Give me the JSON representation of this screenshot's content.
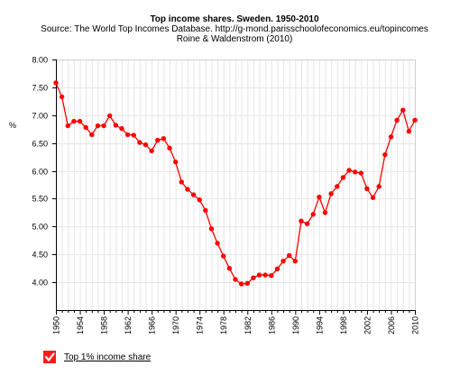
{
  "chart_data": {
    "type": "line",
    "title": "Top income shares. Sweden. 1950-2010",
    "subtitle": [
      "Source: The World Top Incomes Database. http://g-mond.parisschoolofeconomics.eu/topincomes",
      "Roine & Waldenstrom (2010)"
    ],
    "ylabel": "%",
    "xlabel": "",
    "xlim": [
      1950,
      2010
    ],
    "ylim": [
      3.5,
      8.0
    ],
    "x_ticks": [
      1950,
      1954,
      1958,
      1962,
      1966,
      1970,
      1974,
      1978,
      1982,
      1986,
      1990,
      1994,
      1998,
      2002,
      2006,
      2010
    ],
    "y_ticks": [
      "4.00",
      "4.50",
      "5.00",
      "5.50",
      "6.00",
      "6.50",
      "7.00",
      "7.50",
      "8.00"
    ],
    "grid": true,
    "legend_position": "bottom-left",
    "series": [
      {
        "name": "Top 1% income share",
        "color": "#ff0000",
        "x": [
          1950,
          1951,
          1952,
          1953,
          1954,
          1955,
          1956,
          1957,
          1958,
          1959,
          1960,
          1961,
          1962,
          1963,
          1964,
          1965,
          1966,
          1967,
          1968,
          1969,
          1970,
          1971,
          1972,
          1973,
          1974,
          1975,
          1976,
          1977,
          1978,
          1979,
          1980,
          1981,
          1982,
          1983,
          1984,
          1985,
          1986,
          1987,
          1988,
          1989,
          1990,
          1991,
          1992,
          1993,
          1994,
          1995,
          1996,
          1997,
          1998,
          1999,
          2000,
          2001,
          2002,
          2003,
          2004,
          2005,
          2006,
          2007,
          2008,
          2009,
          2010
        ],
        "values": [
          7.58,
          7.33,
          6.81,
          6.89,
          6.89,
          6.78,
          6.65,
          6.81,
          6.81,
          6.99,
          6.82,
          6.76,
          6.65,
          6.64,
          6.51,
          6.47,
          6.36,
          6.55,
          6.58,
          6.41,
          6.16,
          5.8,
          5.67,
          5.57,
          5.48,
          5.29,
          4.96,
          4.7,
          4.47,
          4.25,
          4.05,
          3.97,
          3.98,
          4.08,
          4.13,
          4.13,
          4.12,
          4.24,
          4.38,
          4.48,
          4.38,
          5.1,
          5.05,
          5.22,
          5.53,
          5.25,
          5.59,
          5.72,
          5.88,
          6.01,
          5.98,
          5.96,
          5.68,
          5.52,
          5.72,
          6.29,
          6.61,
          6.91,
          7.09,
          6.71,
          6.91
        ]
      }
    ]
  }
}
